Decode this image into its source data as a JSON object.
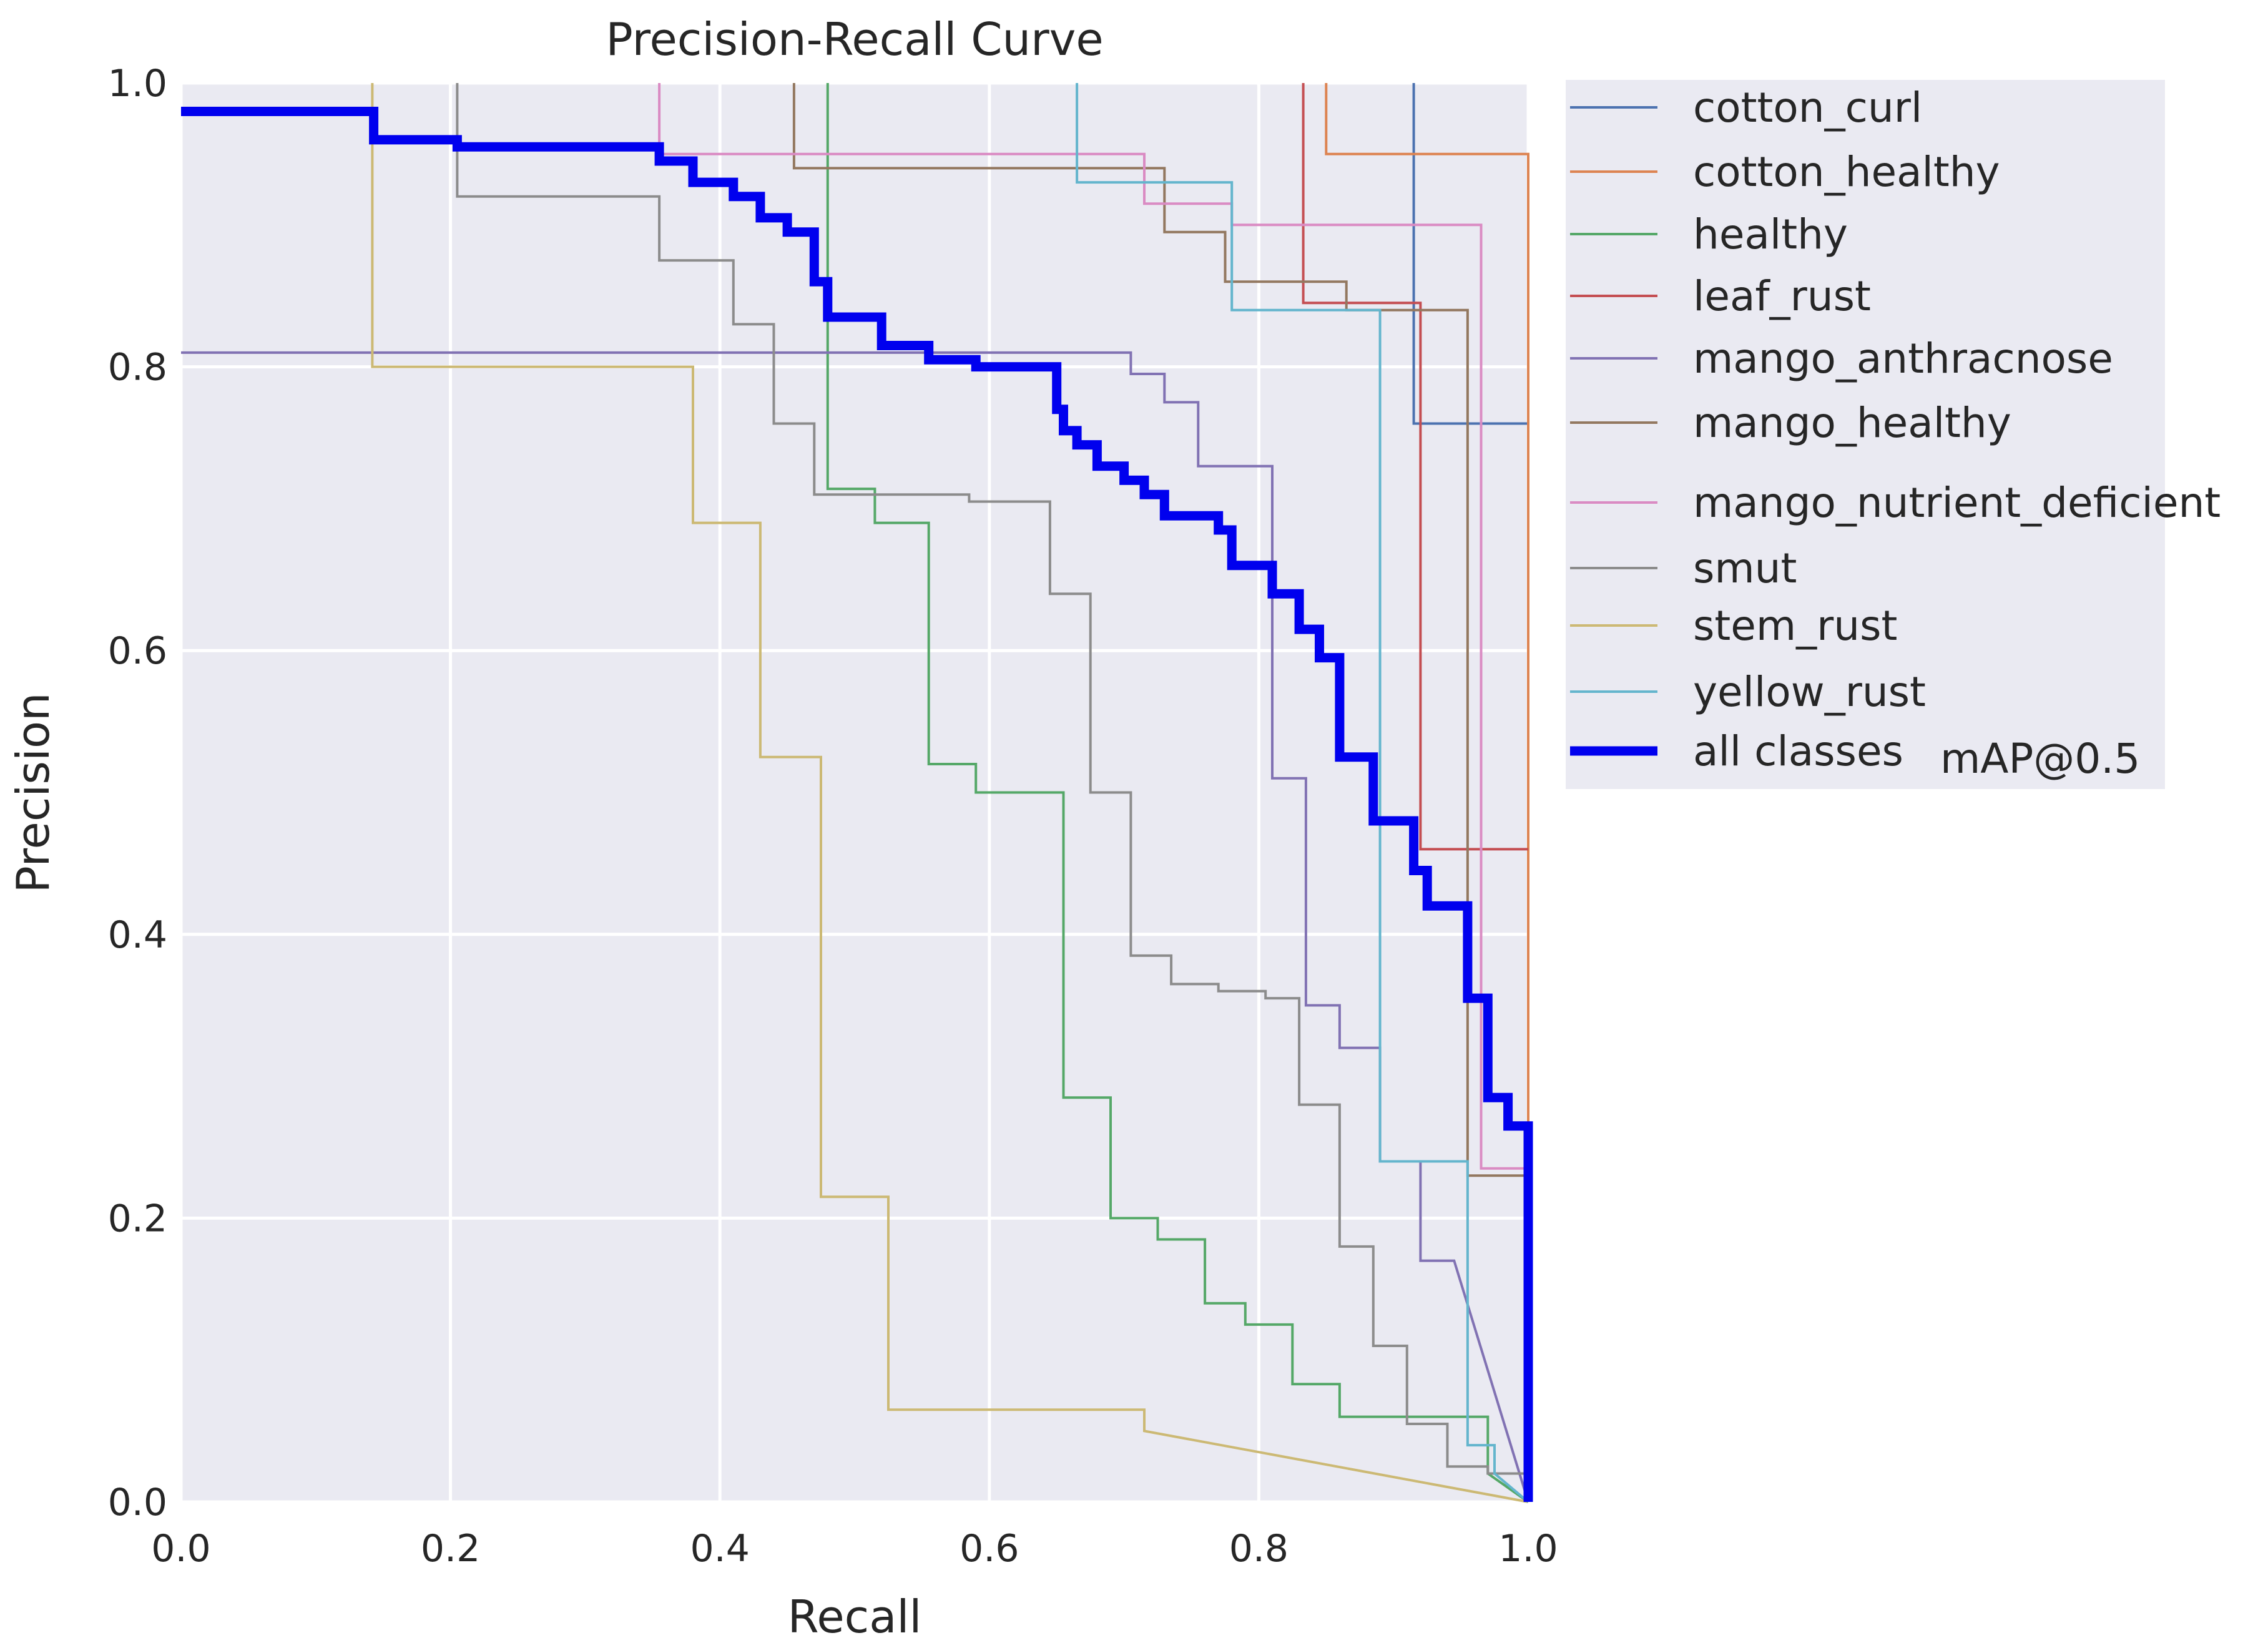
{
  "chart_data": {
    "type": "line",
    "title": "Precision-Recall Curve",
    "xlabel": "Recall",
    "ylabel": "Precision",
    "xlim": [
      0,
      1
    ],
    "ylim": [
      0,
      1
    ],
    "xticks": [
      "0.0",
      "0.2",
      "0.4",
      "0.6",
      "0.8",
      "1.0"
    ],
    "yticks": [
      "0.0",
      "0.2",
      "0.4",
      "0.6",
      "0.8",
      "1.0"
    ],
    "grid": true,
    "legend_position": "outside-right",
    "legend_extra_text": "mAP@0.5",
    "series": [
      {
        "name": "cotton_curl",
        "color": "#4c72b0",
        "width": 1,
        "x": [
          0.915,
          0.915,
          0.925,
          0.925,
          1.0
        ],
        "y": [
          1.0,
          0.76,
          0.76,
          0.76,
          0.76
        ]
      },
      {
        "name": "cotton_healthy",
        "color": "#dd8452",
        "width": 1,
        "x": [
          0.85,
          0.85,
          1.0,
          1.0
        ],
        "y": [
          1.0,
          0.95,
          0.95,
          0.0
        ]
      },
      {
        "name": "healthy",
        "color": "#55a868",
        "width": 1,
        "x": [
          0.48,
          0.48,
          0.515,
          0.515,
          0.555,
          0.555,
          0.59,
          0.59,
          0.625,
          0.625,
          0.655,
          0.655,
          0.69,
          0.69,
          0.725,
          0.725,
          0.76,
          0.76,
          0.79,
          0.79,
          0.825,
          0.825,
          0.86,
          0.86,
          0.885,
          0.885,
          0.97,
          0.97,
          1.0
        ],
        "y": [
          1.0,
          0.714,
          0.714,
          0.69,
          0.69,
          0.52,
          0.52,
          0.5,
          0.5,
          0.5,
          0.5,
          0.285,
          0.285,
          0.2,
          0.2,
          0.185,
          0.185,
          0.14,
          0.14,
          0.125,
          0.125,
          0.083,
          0.083,
          0.06,
          0.06,
          0.06,
          0.06,
          0.02,
          0.0
        ]
      },
      {
        "name": "leaf_rust",
        "color": "#c44e52",
        "width": 1,
        "x": [
          0.833,
          0.833,
          0.92,
          0.92,
          0.96,
          0.96,
          1.0
        ],
        "y": [
          1.0,
          0.845,
          0.845,
          0.46,
          0.46,
          0.46,
          0.46
        ]
      },
      {
        "name": "mango_anthracnose",
        "color": "#8172b3",
        "width": 1,
        "x": [
          0.0,
          0.705,
          0.705,
          0.73,
          0.73,
          0.755,
          0.755,
          0.81,
          0.81,
          0.835,
          0.835,
          0.86,
          0.86,
          0.89,
          0.89,
          0.92,
          0.92,
          0.945,
          0.945,
          1.0
        ],
        "y": [
          0.81,
          0.81,
          0.795,
          0.795,
          0.775,
          0.775,
          0.73,
          0.73,
          0.51,
          0.51,
          0.35,
          0.35,
          0.32,
          0.32,
          0.24,
          0.24,
          0.17,
          0.17,
          0.17,
          0.0
        ]
      },
      {
        "name": "mango_healthy",
        "color": "#937860",
        "width": 1,
        "x": [
          0.455,
          0.455,
          0.73,
          0.73,
          0.775,
          0.775,
          0.865,
          0.865,
          0.955,
          0.955,
          1.0,
          1.0
        ],
        "y": [
          1.0,
          0.94,
          0.94,
          0.895,
          0.895,
          0.86,
          0.86,
          0.84,
          0.84,
          0.23,
          0.23,
          0.0
        ]
      },
      {
        "name": "mango_nutrient_deficient",
        "color": "#da8bc3",
        "width": 1,
        "x": [
          0.355,
          0.355,
          0.715,
          0.715,
          0.78,
          0.78,
          0.965,
          0.965,
          1.0,
          1.0
        ],
        "y": [
          1.0,
          0.95,
          0.95,
          0.915,
          0.915,
          0.9,
          0.9,
          0.235,
          0.235,
          0.0
        ]
      },
      {
        "name": "smut",
        "color": "#8c8c8c",
        "width": 1,
        "x": [
          0.205,
          0.205,
          0.355,
          0.355,
          0.41,
          0.41,
          0.44,
          0.44,
          0.47,
          0.47,
          0.555,
          0.555,
          0.585,
          0.585,
          0.645,
          0.645,
          0.675,
          0.675,
          0.705,
          0.705,
          0.735,
          0.735,
          0.77,
          0.77,
          0.805,
          0.805,
          0.83,
          0.83,
          0.86,
          0.86,
          0.885,
          0.885,
          0.91,
          0.91,
          0.94,
          0.94,
          0.97,
          0.97,
          1.0,
          1.0
        ],
        "y": [
          1.0,
          0.92,
          0.92,
          0.875,
          0.875,
          0.83,
          0.83,
          0.76,
          0.76,
          0.71,
          0.71,
          0.71,
          0.71,
          0.705,
          0.705,
          0.64,
          0.64,
          0.5,
          0.5,
          0.385,
          0.385,
          0.365,
          0.365,
          0.36,
          0.36,
          0.355,
          0.355,
          0.28,
          0.28,
          0.18,
          0.18,
          0.11,
          0.11,
          0.055,
          0.055,
          0.025,
          0.025,
          0.02,
          0.02,
          0.0
        ]
      },
      {
        "name": "stem_rust",
        "color": "#ccb974",
        "width": 1,
        "x": [
          0.142,
          0.142,
          0.38,
          0.38,
          0.43,
          0.43,
          0.475,
          0.475,
          0.525,
          0.525,
          0.715,
          0.715,
          1.0
        ],
        "y": [
          1.0,
          0.8,
          0.8,
          0.69,
          0.69,
          0.525,
          0.525,
          0.215,
          0.215,
          0.065,
          0.065,
          0.05,
          0.0
        ]
      },
      {
        "name": "yellow_rust",
        "color": "#64b5cd",
        "width": 1,
        "x": [
          0.665,
          0.665,
          0.78,
          0.78,
          0.89,
          0.89,
          0.955,
          0.955,
          0.975,
          0.975,
          1.0
        ],
        "y": [
          1.0,
          0.93,
          0.93,
          0.84,
          0.84,
          0.24,
          0.24,
          0.04,
          0.04,
          0.02,
          0.0
        ]
      },
      {
        "name": "all classes",
        "color": "#0000ee",
        "width": 5,
        "x": [
          0.0,
          0.143,
          0.143,
          0.205,
          0.205,
          0.355,
          0.355,
          0.38,
          0.38,
          0.41,
          0.41,
          0.43,
          0.43,
          0.45,
          0.45,
          0.47,
          0.47,
          0.48,
          0.48,
          0.52,
          0.52,
          0.555,
          0.555,
          0.59,
          0.59,
          0.65,
          0.65,
          0.655,
          0.655,
          0.665,
          0.665,
          0.68,
          0.68,
          0.7,
          0.7,
          0.715,
          0.715,
          0.73,
          0.73,
          0.77,
          0.77,
          0.78,
          0.78,
          0.81,
          0.81,
          0.83,
          0.83,
          0.845,
          0.845,
          0.86,
          0.86,
          0.885,
          0.885,
          0.915,
          0.915,
          0.925,
          0.925,
          0.955,
          0.955,
          0.97,
          0.97,
          0.985,
          0.985,
          1.0,
          1.0
        ],
        "y": [
          0.98,
          0.98,
          0.96,
          0.96,
          0.955,
          0.955,
          0.945,
          0.945,
          0.93,
          0.93,
          0.92,
          0.92,
          0.905,
          0.905,
          0.895,
          0.895,
          0.86,
          0.86,
          0.835,
          0.835,
          0.815,
          0.815,
          0.805,
          0.805,
          0.8,
          0.8,
          0.77,
          0.77,
          0.755,
          0.755,
          0.745,
          0.745,
          0.73,
          0.73,
          0.72,
          0.72,
          0.71,
          0.71,
          0.695,
          0.695,
          0.685,
          0.685,
          0.66,
          0.66,
          0.64,
          0.64,
          0.615,
          0.615,
          0.595,
          0.595,
          0.525,
          0.525,
          0.48,
          0.48,
          0.445,
          0.445,
          0.42,
          0.42,
          0.355,
          0.355,
          0.285,
          0.285,
          0.265,
          0.265,
          0.0
        ]
      }
    ]
  }
}
